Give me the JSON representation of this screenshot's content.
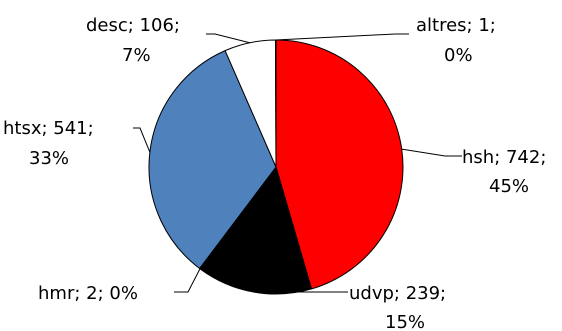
{
  "chart_data": {
    "type": "pie",
    "title": "",
    "legend": "none",
    "slices": [
      {
        "label": "hsh",
        "value": 742,
        "percent": "45%",
        "color": "#ff0000",
        "label_line1": "hsh; 742;",
        "label_line2": "45%"
      },
      {
        "label": "udvp",
        "value": 239,
        "percent": "15%",
        "color": "#000000",
        "label_line1": "udvp; 239;",
        "label_line2": "15%"
      },
      {
        "label": "hmr",
        "value": 2,
        "percent": "0%",
        "color": "#c0c0c0",
        "label_line1": "hmr; 2; 0%",
        "label_line2": ""
      },
      {
        "label": "htsx",
        "value": 541,
        "percent": "33%",
        "color": "#4f81bd",
        "label_line1": "htsx; 541;",
        "label_line2": "33%"
      },
      {
        "label": "desc",
        "value": 106,
        "percent": "7%",
        "color": "#ffffff",
        "label_line1": "desc; 106;",
        "label_line2": "7%"
      },
      {
        "label": "altres",
        "value": 1,
        "percent": "0%",
        "color": "#ffffff",
        "label_line1": "altres; 1;",
        "label_line2": "0%"
      }
    ]
  }
}
